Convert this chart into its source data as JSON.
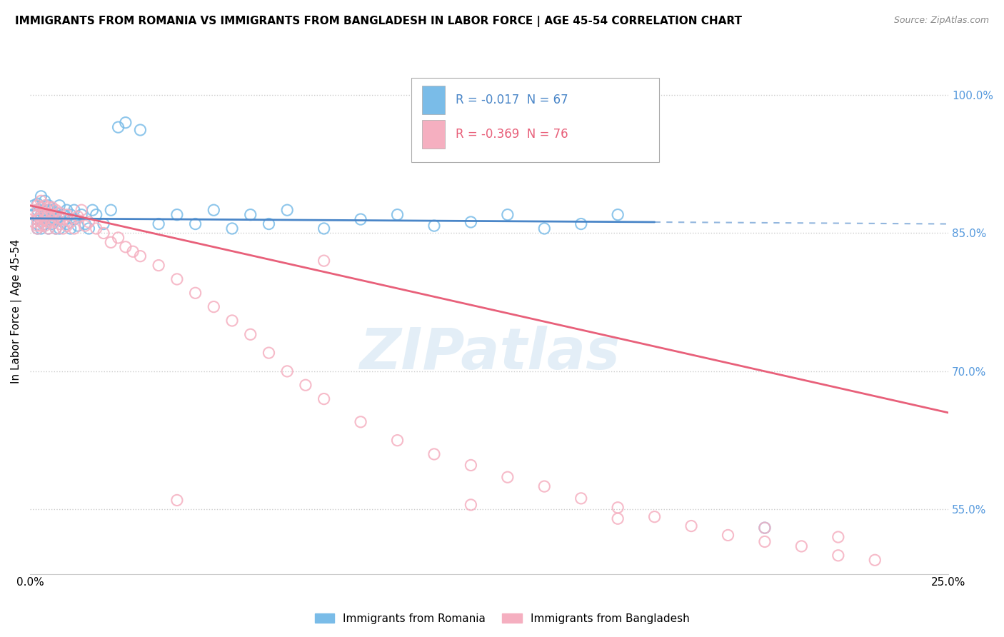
{
  "title": "IMMIGRANTS FROM ROMANIA VS IMMIGRANTS FROM BANGLADESH IN LABOR FORCE | AGE 45-54 CORRELATION CHART",
  "source": "Source: ZipAtlas.com",
  "ylabel": "In Labor Force | Age 45-54",
  "y_ticks": [
    0.55,
    0.7,
    0.85,
    1.0
  ],
  "y_tick_labels": [
    "55.0%",
    "70.0%",
    "85.0%",
    "100.0%"
  ],
  "x_lim": [
    0.0,
    0.25
  ],
  "y_lim": [
    0.48,
    1.05
  ],
  "romania_R": -0.017,
  "romania_N": 67,
  "bangladesh_R": -0.369,
  "bangladesh_N": 76,
  "romania_color": "#7abce8",
  "bangladesh_color": "#f5afc0",
  "romania_line_color": "#4a86c8",
  "bangladesh_line_color": "#e8607a",
  "watermark": "ZIPatlas",
  "legend_romania_label": "Immigrants from Romania",
  "legend_bangladesh_label": "Immigrants from Bangladesh",
  "romania_scatter_x": [
    0.001,
    0.001,
    0.002,
    0.002,
    0.002,
    0.002,
    0.002,
    0.003,
    0.003,
    0.003,
    0.003,
    0.003,
    0.004,
    0.004,
    0.004,
    0.004,
    0.004,
    0.005,
    0.005,
    0.005,
    0.005,
    0.006,
    0.006,
    0.006,
    0.007,
    0.007,
    0.007,
    0.008,
    0.008,
    0.008,
    0.009,
    0.009,
    0.01,
    0.01,
    0.011,
    0.011,
    0.012,
    0.012,
    0.013,
    0.014,
    0.015,
    0.016,
    0.017,
    0.018,
    0.02,
    0.022,
    0.024,
    0.026,
    0.03,
    0.035,
    0.04,
    0.045,
    0.05,
    0.055,
    0.06,
    0.065,
    0.07,
    0.08,
    0.09,
    0.1,
    0.11,
    0.12,
    0.13,
    0.14,
    0.15,
    0.16,
    0.2
  ],
  "romania_scatter_y": [
    0.87,
    0.88,
    0.86,
    0.875,
    0.865,
    0.882,
    0.855,
    0.87,
    0.878,
    0.862,
    0.855,
    0.89,
    0.868,
    0.875,
    0.86,
    0.885,
    0.87,
    0.865,
    0.855,
    0.875,
    0.88,
    0.86,
    0.87,
    0.875,
    0.855,
    0.865,
    0.872,
    0.868,
    0.855,
    0.88,
    0.862,
    0.87,
    0.86,
    0.875,
    0.855,
    0.87,
    0.865,
    0.875,
    0.858,
    0.87,
    0.86,
    0.855,
    0.875,
    0.87,
    0.86,
    0.875,
    0.965,
    0.97,
    0.962,
    0.86,
    0.87,
    0.86,
    0.875,
    0.855,
    0.87,
    0.86,
    0.875,
    0.855,
    0.865,
    0.87,
    0.858,
    0.862,
    0.87,
    0.855,
    0.86,
    0.87,
    0.53
  ],
  "bangladesh_scatter_x": [
    0.001,
    0.001,
    0.002,
    0.002,
    0.002,
    0.002,
    0.002,
    0.003,
    0.003,
    0.003,
    0.003,
    0.003,
    0.004,
    0.004,
    0.004,
    0.004,
    0.005,
    0.005,
    0.005,
    0.005,
    0.006,
    0.006,
    0.006,
    0.007,
    0.007,
    0.007,
    0.008,
    0.008,
    0.009,
    0.009,
    0.01,
    0.01,
    0.011,
    0.012,
    0.013,
    0.014,
    0.015,
    0.016,
    0.018,
    0.02,
    0.022,
    0.024,
    0.026,
    0.028,
    0.03,
    0.035,
    0.04,
    0.045,
    0.05,
    0.055,
    0.06,
    0.065,
    0.07,
    0.075,
    0.08,
    0.09,
    0.1,
    0.11,
    0.12,
    0.13,
    0.14,
    0.15,
    0.16,
    0.17,
    0.18,
    0.19,
    0.2,
    0.21,
    0.22,
    0.23,
    0.04,
    0.08,
    0.12,
    0.16,
    0.2,
    0.22
  ],
  "bangladesh_scatter_y": [
    0.875,
    0.862,
    0.87,
    0.858,
    0.88,
    0.865,
    0.855,
    0.878,
    0.862,
    0.87,
    0.858,
    0.885,
    0.865,
    0.872,
    0.858,
    0.88,
    0.862,
    0.878,
    0.855,
    0.87,
    0.862,
    0.87,
    0.878,
    0.855,
    0.868,
    0.875,
    0.86,
    0.872,
    0.855,
    0.865,
    0.858,
    0.87,
    0.862,
    0.855,
    0.868,
    0.875,
    0.858,
    0.862,
    0.855,
    0.85,
    0.84,
    0.845,
    0.835,
    0.83,
    0.825,
    0.815,
    0.8,
    0.785,
    0.77,
    0.755,
    0.74,
    0.72,
    0.7,
    0.685,
    0.67,
    0.645,
    0.625,
    0.61,
    0.598,
    0.585,
    0.575,
    0.562,
    0.552,
    0.542,
    0.532,
    0.522,
    0.515,
    0.51,
    0.5,
    0.495,
    0.56,
    0.82,
    0.555,
    0.54,
    0.53,
    0.52
  ],
  "rom_line_x0": 0.0,
  "rom_line_y0": 0.866,
  "rom_line_x1": 0.17,
  "rom_line_y1": 0.862,
  "rom_line_x1_dash": 0.25,
  "rom_line_y1_dash": 0.86,
  "ban_line_x0": 0.0,
  "ban_line_y0": 0.88,
  "ban_line_x1": 0.25,
  "ban_line_y1": 0.655
}
